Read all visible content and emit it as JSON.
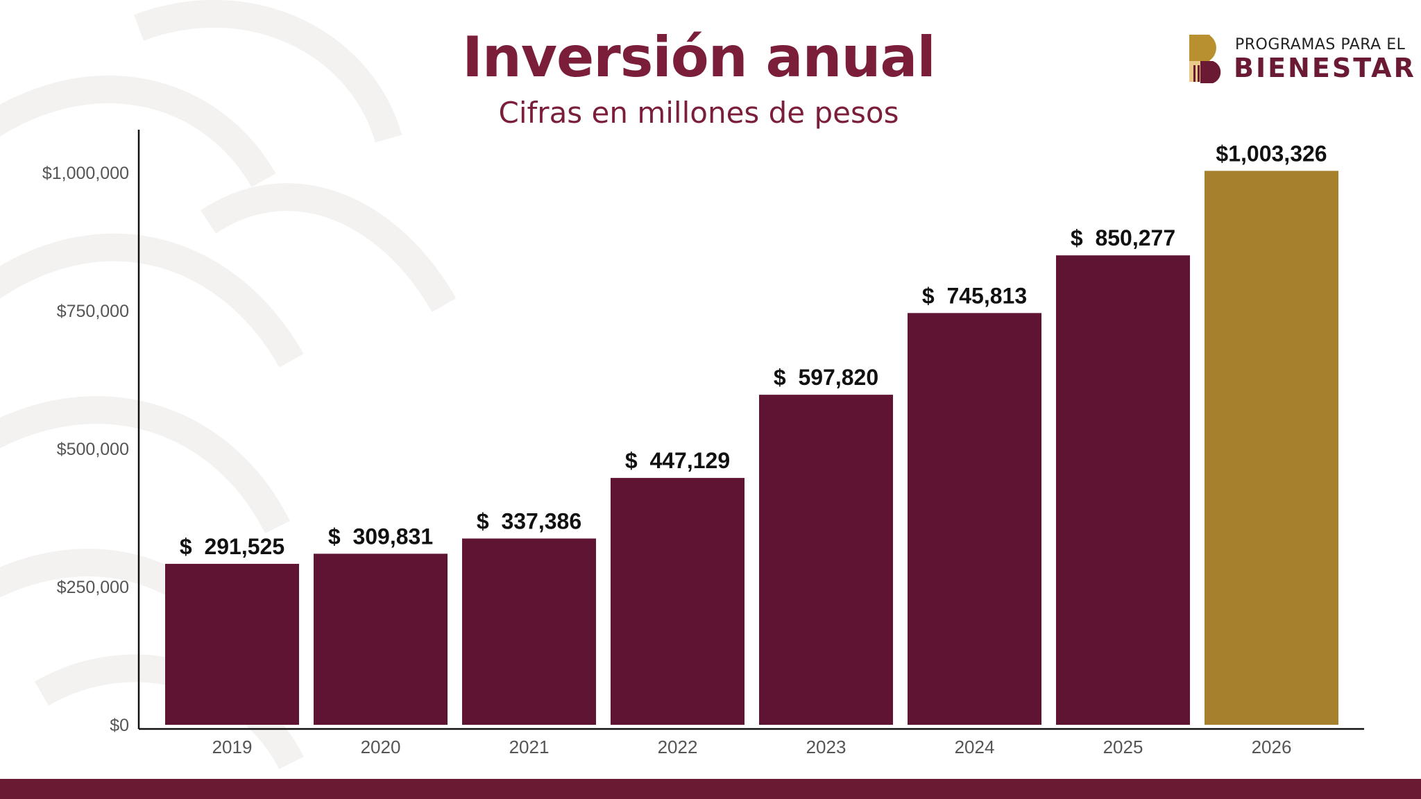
{
  "header": {
    "title": "Inversión anual",
    "subtitle": "Cifras en millones de pesos"
  },
  "logo": {
    "line1": "PROGRAMAS PARA EL",
    "line2": "BIENESTAR"
  },
  "colors": {
    "bar": "#5f1433",
    "highlight_bar": "#a7802e",
    "title": "#7b1e3a",
    "band": "#6b1a33"
  },
  "chart_data": {
    "type": "bar",
    "title": "Inversión anual",
    "subtitle": "Cifras en millones de pesos",
    "categories": [
      "2019",
      "2020",
      "2021",
      "2022",
      "2023",
      "2024",
      "2025",
      "2026"
    ],
    "values": [
      291525,
      309831,
      337386,
      447129,
      597820,
      745813,
      850277,
      1003326
    ],
    "data_labels": [
      "$  291,525",
      "$  309,831",
      "$  337,386",
      "$  447,129",
      "$  597,820",
      "$  745,813",
      "$  850,277",
      "$1,003,326"
    ],
    "highlight_category": "2026",
    "ylim": [
      0,
      1000000
    ],
    "yticks": [
      0,
      250000,
      500000,
      750000,
      1000000
    ],
    "ytick_labels": [
      "$0",
      "$250,000",
      "$500,000",
      "$750,000",
      "$1,000,000"
    ],
    "grid": false,
    "legend": "none"
  }
}
